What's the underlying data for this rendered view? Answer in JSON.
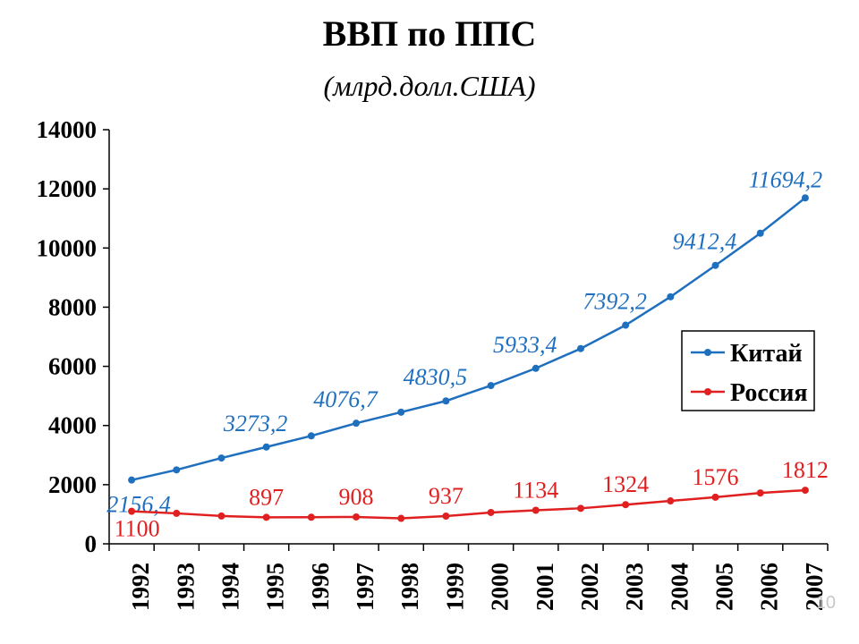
{
  "chart_data": {
    "type": "line",
    "title": "ВВП по ППС",
    "subtitle": "(млрд.долл.США)",
    "categories": [
      "1992",
      "1993",
      "1994",
      "1995",
      "1996",
      "1997",
      "1998",
      "1999",
      "2000",
      "2001",
      "2002",
      "2003",
      "2004",
      "2005",
      "2006",
      "2007"
    ],
    "ylim": [
      0,
      14000
    ],
    "yticks": [
      "0",
      "2000",
      "4000",
      "6000",
      "8000",
      "10000",
      "12000",
      "14000"
    ],
    "ytick_values": [
      0,
      2000,
      4000,
      6000,
      8000,
      10000,
      12000,
      14000
    ],
    "grid": false,
    "legend_position": "right",
    "series": [
      {
        "name": "Китай",
        "color": "#1f6fbf",
        "values": [
          2156.4,
          2500,
          2900,
          3273.2,
          3650,
          4076.7,
          4450,
          4830.5,
          5350,
          5933.4,
          6600,
          7392.2,
          8350,
          9412.4,
          10500,
          11694.2
        ],
        "labels": [
          "2156,4",
          "",
          "",
          "3273,2",
          "",
          "4076,7",
          "",
          "4830,5",
          "",
          "5933,4",
          "",
          "7392,2",
          "",
          "9412,4",
          "",
          "11694,2"
        ]
      },
      {
        "name": "Россия",
        "color": "#e02020",
        "values": [
          1100,
          1030,
          940,
          897,
          900,
          908,
          860,
          937,
          1060,
          1134,
          1200,
          1324,
          1450,
          1576,
          1720,
          1812
        ],
        "labels": [
          "1100",
          "",
          "",
          "897",
          "",
          "908",
          "",
          "937",
          "",
          "1134",
          "",
          "1324",
          "",
          "1576",
          "",
          "1812"
        ]
      }
    ]
  },
  "footer": {
    "page_number": "10"
  }
}
